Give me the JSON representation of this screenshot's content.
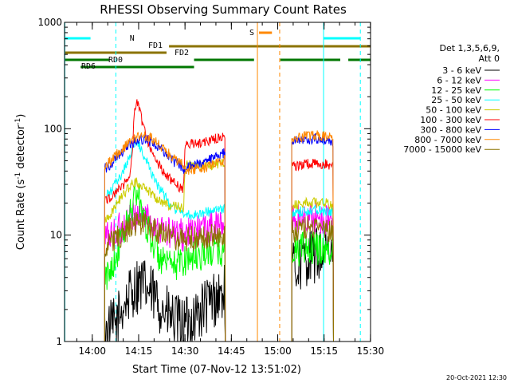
{
  "chart_data": {
    "type": "line",
    "title": "RHESSI Observing Summary Count Rates",
    "xlabel": "Start Time (07-Nov-12 13:51:02)",
    "ylabel_main": "Count Rate (s",
    "ylabel_sup": "-1",
    "ylabel_mid": " detector",
    "ylabel_sup2": "-1",
    "ylabel_end": ")",
    "y_scale": "log",
    "ylim": [
      1,
      1000
    ],
    "xlim_minutes": [
      0,
      99
    ],
    "x_ticks": [
      {
        "minute": 8.97,
        "label": "14:00"
      },
      {
        "minute": 23.97,
        "label": "14:15"
      },
      {
        "minute": 38.97,
        "label": "14:30"
      },
      {
        "minute": 53.97,
        "label": "14:45"
      },
      {
        "minute": 68.97,
        "label": "15:00"
      },
      {
        "minute": 83.97,
        "label": "15:15"
      },
      {
        "minute": 98.97,
        "label": "15:30"
      }
    ],
    "y_ticks": [
      {
        "value": 1,
        "label": "1"
      },
      {
        "value": 10,
        "label": "10"
      },
      {
        "value": 100,
        "label": "100"
      },
      {
        "value": 1000,
        "label": "1000"
      }
    ],
    "legend_header": [
      "Det 1,3,5,6,9,",
      "Att 0"
    ],
    "legend_placement": "right",
    "series": [
      {
        "name": "3 - 6 keV",
        "color": "#000000",
        "segments": [
          [
            [
              13.0,
              1.2
            ],
            [
              15,
              1.3
            ],
            [
              17,
              1.5
            ],
            [
              19,
              2.2
            ],
            [
              22,
              3
            ],
            [
              24,
              3.5
            ],
            [
              26,
              3.2
            ],
            [
              28,
              2.8
            ],
            [
              31,
              2.2
            ],
            [
              33,
              1.8
            ],
            [
              36,
              1.5
            ],
            [
              39,
              1.4
            ],
            [
              43,
              1.8
            ],
            [
              48,
              2.5
            ],
            [
              52,
              2.8
            ]
          ],
          [
            [
              73.5,
              4.5
            ],
            [
              76,
              5.5
            ],
            [
              79,
              6.2
            ],
            [
              82,
              6.5
            ],
            [
              85,
              6.5
            ],
            [
              87,
              6
            ]
          ]
        ]
      },
      {
        "name": "6 - 12 keV",
        "color": "#ff00ff",
        "segments": [
          [
            [
              13.0,
              9.5
            ],
            [
              16,
              10.5
            ],
            [
              19,
              12
            ],
            [
              22,
              14.5
            ],
            [
              24,
              16
            ],
            [
              26,
              15
            ],
            [
              29,
              13
            ],
            [
              32,
              11
            ],
            [
              35,
              10.2
            ],
            [
              39,
              10
            ],
            [
              43,
              11
            ],
            [
              48,
              12
            ],
            [
              52,
              12.5
            ]
          ],
          [
            [
              73.5,
              14
            ],
            [
              78,
              14.5
            ],
            [
              83,
              14.5
            ],
            [
              87,
              13.5
            ]
          ]
        ]
      },
      {
        "name": "12 - 25 keV",
        "color": "#00ff00",
        "segments": [
          [
            [
              13.0,
              3.5
            ],
            [
              15,
              5
            ],
            [
              17,
              7
            ],
            [
              19,
              10
            ],
            [
              21,
              15
            ],
            [
              22.5,
              22
            ],
            [
              23.5,
              25
            ],
            [
              25,
              18
            ],
            [
              27,
              11
            ],
            [
              29,
              8
            ],
            [
              31,
              6
            ],
            [
              33,
              5
            ],
            [
              35,
              5
            ],
            [
              37,
              5.5
            ],
            [
              39,
              6
            ],
            [
              43,
              6.5
            ],
            [
              48,
              7
            ],
            [
              52,
              7.2
            ]
          ],
          [
            [
              73.5,
              7
            ],
            [
              78,
              7.5
            ],
            [
              83,
              7.5
            ],
            [
              87,
              7
            ]
          ]
        ]
      },
      {
        "name": "25 - 50 keV",
        "color": "#00ffff",
        "segments": [
          [
            [
              13.0,
              22
            ],
            [
              15,
              26
            ],
            [
              17,
              32
            ],
            [
              19,
              40
            ],
            [
              21,
              55
            ],
            [
              22.5,
              68
            ],
            [
              23.5,
              75
            ],
            [
              25,
              62
            ],
            [
              26.5,
              50
            ],
            [
              28,
              40
            ],
            [
              30,
              30
            ],
            [
              32,
              24
            ],
            [
              34,
              20
            ],
            [
              36,
              17.5
            ],
            [
              38,
              16.5
            ],
            [
              40,
              15.5
            ],
            [
              44,
              16
            ],
            [
              48,
              17
            ],
            [
              52,
              17.5
            ]
          ],
          [
            [
              73.5,
              16
            ],
            [
              78,
              17
            ],
            [
              83,
              17.5
            ],
            [
              87,
              16.5
            ]
          ]
        ]
      },
      {
        "name": "50 - 100 keV",
        "color": "#cccc00",
        "segments": [
          [
            [
              13.0,
              14
            ],
            [
              15,
              16
            ],
            [
              17,
              20
            ],
            [
              19,
              24
            ],
            [
              21,
              29
            ],
            [
              22.5,
              31
            ],
            [
              24,
              31
            ],
            [
              26,
              28
            ],
            [
              28,
              25
            ],
            [
              30,
              22
            ],
            [
              32,
              20
            ],
            [
              34,
              19
            ],
            [
              36,
              18.5
            ],
            [
              38.5,
              18
            ],
            [
              39,
              45
            ],
            [
              45,
              45
            ],
            [
              50,
              47
            ],
            [
              52,
              48
            ]
          ],
          [
            [
              73.5,
              19
            ],
            [
              78,
              20
            ],
            [
              83,
              20
            ],
            [
              87,
              19.5
            ]
          ]
        ]
      },
      {
        "name": "100 - 300 keV",
        "color": "#ff0000",
        "segments": [
          [
            [
              13.0,
              21
            ],
            [
              15,
              23
            ],
            [
              17,
              26
            ],
            [
              19,
              30
            ],
            [
              21,
              36
            ],
            [
              22,
              60
            ],
            [
              22.5,
              140
            ],
            [
              23,
              170
            ],
            [
              23.6,
              175
            ],
            [
              24.3,
              150
            ],
            [
              25,
              120
            ],
            [
              26.5,
              85
            ],
            [
              28,
              62
            ],
            [
              30,
              48
            ],
            [
              32,
              40
            ],
            [
              34,
              34
            ],
            [
              36,
              30
            ],
            [
              38.5,
              27
            ],
            [
              39,
              70
            ],
            [
              45,
              75
            ],
            [
              50,
              82
            ],
            [
              52,
              88
            ]
          ],
          [
            [
              73.5,
              44
            ],
            [
              78,
              47
            ],
            [
              83,
              47
            ],
            [
              87,
              45
            ]
          ]
        ]
      },
      {
        "name": "300 - 800 keV",
        "color": "#0000ff",
        "segments": [
          [
            [
              13.0,
              42
            ],
            [
              15,
              47
            ],
            [
              17,
              54
            ],
            [
              19,
              62
            ],
            [
              21,
              70
            ],
            [
              23,
              77
            ],
            [
              25,
              80
            ],
            [
              27,
              78
            ],
            [
              29,
              72
            ],
            [
              31,
              64
            ],
            [
              33,
              56
            ],
            [
              35,
              50
            ],
            [
              37,
              46
            ],
            [
              38.5,
              42
            ],
            [
              39,
              44
            ],
            [
              45,
              48
            ],
            [
              50,
              55
            ],
            [
              52,
              60
            ]
          ],
          [
            [
              73.5,
              75
            ],
            [
              78,
              80
            ],
            [
              83,
              80
            ],
            [
              87,
              76
            ]
          ]
        ]
      },
      {
        "name": "800 - 7000 keV",
        "color": "#ff8800",
        "segments": [
          [
            [
              13.0,
              45
            ],
            [
              15,
              50
            ],
            [
              17,
              58
            ],
            [
              19,
              66
            ],
            [
              21,
              74
            ],
            [
              23,
              82
            ],
            [
              25,
              86
            ],
            [
              27,
              85
            ],
            [
              29,
              78
            ],
            [
              31,
              68
            ],
            [
              33,
              60
            ],
            [
              35,
              54
            ],
            [
              37,
              49
            ],
            [
              38.5,
              45
            ],
            [
              39,
              40
            ],
            [
              45,
              43
            ],
            [
              50,
              48
            ],
            [
              52,
              51
            ]
          ],
          [
            [
              73.5,
              80
            ],
            [
              78,
              86
            ],
            [
              83,
              86
            ],
            [
              87,
              81
            ]
          ]
        ]
      },
      {
        "name": "7000 - 15000 keV",
        "color": "#8b7300",
        "segments": [
          [
            [
              13.0,
              7.5
            ],
            [
              15,
              8.5
            ],
            [
              17,
              9.5
            ],
            [
              19,
              10.5
            ],
            [
              21,
              11.5
            ],
            [
              23,
              12.5
            ],
            [
              25,
              12.5
            ],
            [
              27,
              11.8
            ],
            [
              29,
              11
            ],
            [
              31,
              10.2
            ],
            [
              33,
              9.8
            ],
            [
              35,
              9.5
            ],
            [
              39,
              9.2
            ],
            [
              45,
              9.5
            ],
            [
              52,
              10
            ]
          ],
          [
            [
              73.5,
              11
            ],
            [
              78,
              11.8
            ],
            [
              83,
              12
            ],
            [
              87,
              11.2
            ]
          ]
        ]
      }
    ],
    "flag_bars": [
      {
        "label": "N",
        "color": "#00ffff",
        "segments": [
          [
            0,
            8.4
          ],
          [
            83.8,
            95.7
          ]
        ]
      },
      {
        "label": "S",
        "color": "#ff8800",
        "segments": [
          [
            62.9,
            67.1
          ]
        ]
      },
      {
        "label": "FD1",
        "color": "#8b7300",
        "segments": [
          [
            33.8,
            99
          ]
        ]
      },
      {
        "label": "FD2",
        "color": "#8b7300",
        "segments": [
          [
            0,
            33.0
          ]
        ]
      },
      {
        "label": "RD0",
        "color": "#007700",
        "segments": [
          [
            0,
            14.4
          ],
          [
            41.9,
            61.3
          ],
          [
            69.8,
            89.2
          ],
          [
            91.8,
            99
          ]
        ]
      },
      {
        "label": "RD6",
        "color": "#007700",
        "segments": [
          [
            5.2,
            41.9
          ]
        ]
      }
    ],
    "vertical_markers": [
      {
        "minute": 0.1,
        "color": "#00ffff",
        "style": "solid"
      },
      {
        "minute": 16.6,
        "color": "#00ffff",
        "style": "dashed"
      },
      {
        "minute": 62.4,
        "color": "#ff8800",
        "style": "solid"
      },
      {
        "minute": 69.6,
        "color": "#ff8800",
        "style": "dashed"
      },
      {
        "minute": 83.8,
        "color": "#00ffff",
        "style": "solid"
      },
      {
        "minute": 95.7,
        "color": "#00ffff",
        "style": "dashed"
      }
    ],
    "grid": false
  },
  "footer": {
    "timestamp": "20-Oct-2021 12:30"
  }
}
